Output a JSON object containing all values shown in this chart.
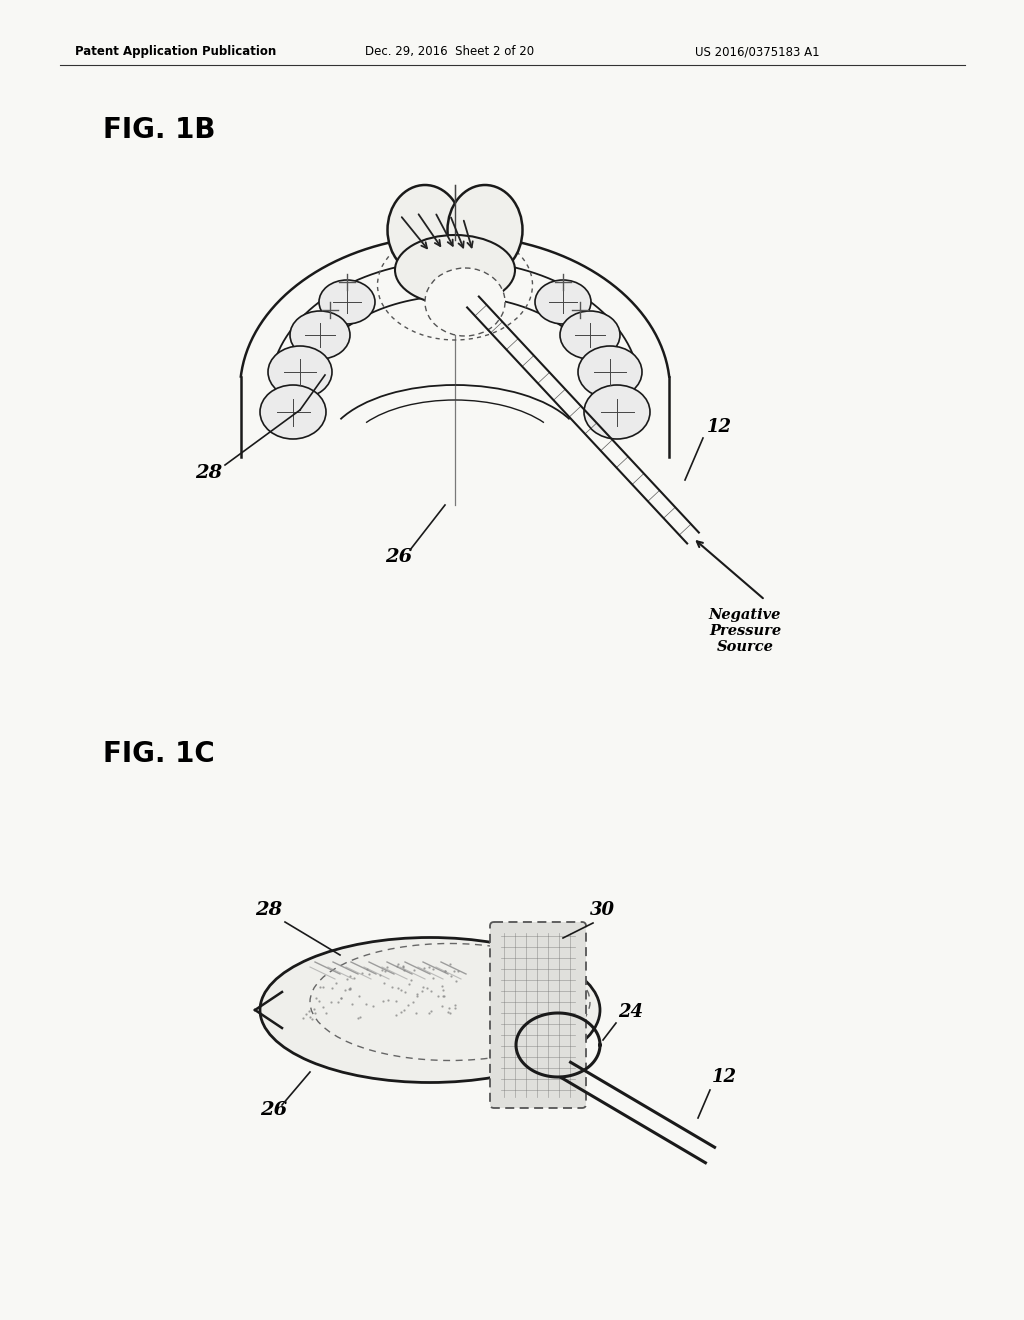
{
  "background_color": "#f5f5f0",
  "header_left": "Patent Application Publication",
  "header_center": "Dec. 29, 2016  Sheet 2 of 20",
  "header_right": "US 2016/0375183 A1",
  "fig1b_label": "FIG. 1B",
  "fig1c_label": "FIG. 1C",
  "neg_pressure_text": "Negative\nPressure\nSource",
  "line_color": "#1a1a1a",
  "text_color": "#000000",
  "sketch_gray": "#888888",
  "light_gray": "#cccccc",
  "page_bg": "#f8f8f5"
}
